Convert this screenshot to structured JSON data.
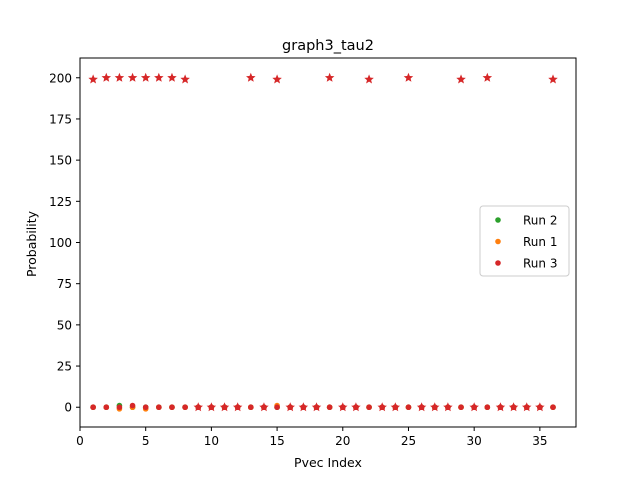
{
  "chart_data": {
    "type": "scatter",
    "title": "graph3_tau2",
    "xlabel": "Pvec Index",
    "ylabel": "Probability",
    "xlim": [
      0,
      37.75
    ],
    "ylim": [
      -12,
      212
    ],
    "xticks": [
      0,
      5,
      10,
      15,
      20,
      25,
      30,
      35
    ],
    "yticks": [
      0,
      25,
      50,
      75,
      100,
      125,
      150,
      175,
      200
    ],
    "grid": false,
    "legend_position": "center-right",
    "series": [
      {
        "name": "Run 2",
        "color": "#2ca02c",
        "points": [
          [
            1,
            0
          ],
          [
            2,
            0
          ],
          [
            3,
            1
          ],
          [
            4,
            0
          ],
          [
            5,
            0
          ],
          [
            6,
            0
          ],
          [
            7,
            0
          ],
          [
            8,
            0
          ],
          [
            9,
            0
          ],
          [
            10,
            0
          ],
          [
            11,
            0
          ],
          [
            12,
            0
          ],
          [
            13,
            0
          ],
          [
            14,
            0
          ],
          [
            15,
            0
          ],
          [
            16,
            0
          ],
          [
            17,
            0
          ],
          [
            18,
            0
          ],
          [
            19,
            0
          ],
          [
            20,
            0
          ],
          [
            21,
            0
          ],
          [
            22,
            0
          ],
          [
            23,
            0
          ],
          [
            24,
            0
          ],
          [
            25,
            0
          ],
          [
            26,
            0
          ],
          [
            27,
            0
          ],
          [
            28,
            0
          ],
          [
            29,
            0
          ],
          [
            30,
            0
          ],
          [
            31,
            0
          ],
          [
            32,
            0
          ],
          [
            33,
            0
          ],
          [
            34,
            0
          ],
          [
            35,
            0
          ],
          [
            36,
            0
          ]
        ]
      },
      {
        "name": "Run 1",
        "color": "#ff7f0e",
        "points": [
          [
            1,
            0
          ],
          [
            2,
            0
          ],
          [
            3,
            -1
          ],
          [
            4,
            0
          ],
          [
            5,
            -1
          ],
          [
            6,
            0
          ],
          [
            7,
            0
          ],
          [
            8,
            0
          ],
          [
            9,
            0
          ],
          [
            10,
            0
          ],
          [
            11,
            0
          ],
          [
            12,
            0
          ],
          [
            13,
            0
          ],
          [
            14,
            0
          ],
          [
            15,
            1
          ],
          [
            16,
            0
          ],
          [
            17,
            0
          ],
          [
            18,
            0
          ],
          [
            19,
            0
          ],
          [
            20,
            0
          ],
          [
            21,
            0
          ],
          [
            22,
            0
          ],
          [
            23,
            0
          ],
          [
            24,
            0
          ],
          [
            25,
            0
          ],
          [
            26,
            0
          ],
          [
            27,
            0
          ],
          [
            28,
            0
          ],
          [
            29,
            0
          ],
          [
            30,
            0
          ],
          [
            31,
            0
          ],
          [
            32,
            0
          ],
          [
            33,
            0
          ],
          [
            34,
            0
          ],
          [
            35,
            0
          ],
          [
            36,
            0
          ]
        ]
      },
      {
        "name": "Run 3",
        "color": "#d62728",
        "points": [
          [
            1,
            0
          ],
          [
            2,
            0
          ],
          [
            3,
            0
          ],
          [
            4,
            1
          ],
          [
            5,
            0
          ],
          [
            6,
            0
          ],
          [
            7,
            0
          ],
          [
            8,
            0
          ],
          [
            9,
            0
          ],
          [
            10,
            0
          ],
          [
            11,
            0
          ],
          [
            12,
            0
          ],
          [
            13,
            0
          ],
          [
            14,
            0
          ],
          [
            15,
            0
          ],
          [
            16,
            0
          ],
          [
            17,
            0
          ],
          [
            18,
            0
          ],
          [
            19,
            0
          ],
          [
            20,
            0
          ],
          [
            21,
            0
          ],
          [
            22,
            0
          ],
          [
            23,
            0
          ],
          [
            24,
            0
          ],
          [
            25,
            0
          ],
          [
            26,
            0
          ],
          [
            27,
            0
          ],
          [
            28,
            0
          ],
          [
            29,
            0
          ],
          [
            30,
            0
          ],
          [
            31,
            0
          ],
          [
            32,
            0
          ],
          [
            33,
            0
          ],
          [
            34,
            0
          ],
          [
            35,
            0
          ],
          [
            36,
            0
          ]
        ]
      },
      {
        "marker": "star",
        "color": "#d62728",
        "points": [
          [
            1,
            199
          ],
          [
            2,
            200
          ],
          [
            3,
            200
          ],
          [
            4,
            200
          ],
          [
            5,
            200
          ],
          [
            6,
            200
          ],
          [
            7,
            200
          ],
          [
            8,
            199
          ],
          [
            9,
            0
          ],
          [
            10,
            0
          ],
          [
            11,
            0
          ],
          [
            12,
            0
          ],
          [
            13,
            200
          ],
          [
            14,
            0
          ],
          [
            15,
            199
          ],
          [
            16,
            0
          ],
          [
            17,
            0
          ],
          [
            18,
            0
          ],
          [
            19,
            200
          ],
          [
            20,
            0
          ],
          [
            21,
            0
          ],
          [
            22,
            199
          ],
          [
            23,
            0
          ],
          [
            24,
            0
          ],
          [
            25,
            200
          ],
          [
            26,
            0
          ],
          [
            27,
            0
          ],
          [
            28,
            0
          ],
          [
            29,
            199
          ],
          [
            30,
            0
          ],
          [
            31,
            200
          ],
          [
            32,
            0
          ],
          [
            33,
            0
          ],
          [
            34,
            0
          ],
          [
            35,
            0
          ],
          [
            36,
            199
          ]
        ]
      }
    ]
  }
}
